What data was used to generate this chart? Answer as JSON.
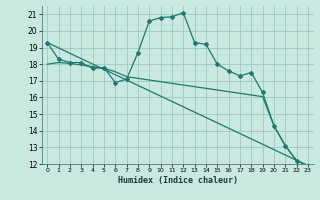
{
  "xlabel": "Humidex (Indice chaleur)",
  "ylabel": "",
  "xlim": [
    -0.5,
    23.5
  ],
  "ylim": [
    12,
    21.5
  ],
  "xticks": [
    0,
    1,
    2,
    3,
    4,
    5,
    6,
    7,
    8,
    9,
    10,
    11,
    12,
    13,
    14,
    15,
    16,
    17,
    18,
    19,
    20,
    21,
    22,
    23
  ],
  "yticks": [
    12,
    13,
    14,
    15,
    16,
    17,
    18,
    19,
    20,
    21
  ],
  "bg_color": "#c8e8e0",
  "grid_color": "#a0c8be",
  "line_color": "#1e7a6e",
  "line1_x": [
    0,
    1,
    2,
    3,
    4,
    5,
    6,
    7,
    8,
    9,
    10,
    11,
    12,
    13,
    14,
    15,
    16,
    17,
    18,
    19,
    20,
    21,
    22,
    23
  ],
  "line1_y": [
    19.3,
    18.3,
    18.1,
    18.1,
    17.75,
    17.8,
    16.9,
    17.1,
    18.7,
    20.6,
    20.8,
    20.85,
    21.1,
    19.3,
    19.2,
    18.0,
    17.6,
    17.3,
    17.5,
    16.3,
    14.3,
    13.1,
    12.2,
    11.9
  ],
  "line2_x": [
    0,
    1,
    2,
    3,
    4,
    5,
    6,
    7,
    8,
    9,
    10,
    11,
    12,
    13,
    14,
    15,
    16,
    17,
    18,
    19,
    20,
    21,
    22,
    23
  ],
  "line2_y": [
    18.0,
    18.1,
    18.05,
    17.95,
    17.85,
    17.75,
    17.55,
    17.25,
    17.15,
    17.05,
    16.95,
    16.85,
    16.75,
    16.65,
    16.55,
    16.45,
    16.35,
    16.25,
    16.15,
    16.05,
    14.3,
    13.1,
    12.2,
    11.9
  ],
  "line3_x": [
    0,
    23
  ],
  "line3_y": [
    19.3,
    11.9
  ]
}
